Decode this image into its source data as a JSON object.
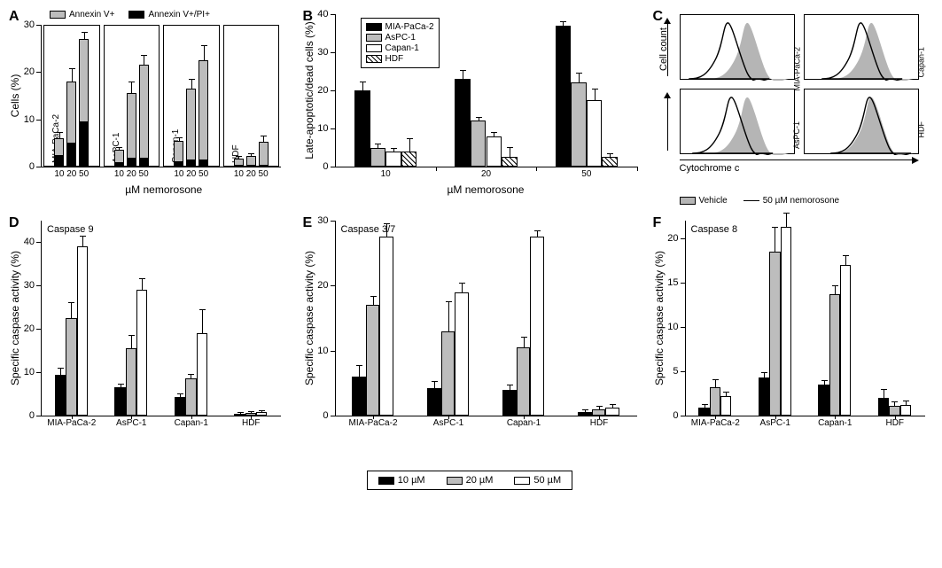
{
  "colors": {
    "black": "#000000",
    "gray": "#bdbdbd",
    "white": "#ffffff",
    "hist_fill": "#b5b5b5"
  },
  "panelA": {
    "label": "A",
    "y_label": "Cells (%)",
    "x_label": "µM nemorosone",
    "ymax": 30,
    "ytick": 10,
    "legend": [
      {
        "swatch": "#bdbdbd",
        "text": "Annexin V+"
      },
      {
        "swatch": "#000000",
        "text": "Annexin V+/PI+"
      }
    ],
    "groups": [
      {
        "name": "MIA-PaCa-2",
        "x": [
          "10",
          "20",
          "50"
        ],
        "gray": [
          6,
          18,
          27
        ],
        "gray_err": [
          1.2,
          2.6,
          1.3
        ],
        "black": [
          2.5,
          5,
          9.5
        ],
        "black_err": [
          0.4,
          0.6,
          0.6
        ]
      },
      {
        "name": "AsPC-1",
        "x": [
          "10",
          "20",
          "50"
        ],
        "gray": [
          3.5,
          15.5,
          21.5
        ],
        "gray_err": [
          0.5,
          2.3,
          2.0
        ],
        "black": [
          1.0,
          1.8,
          1.8
        ],
        "black_err": [
          0.3,
          0.4,
          0.4
        ]
      },
      {
        "name": "Capan-1",
        "x": [
          "10",
          "20",
          "50"
        ],
        "gray": [
          5.5,
          16.5,
          22.5
        ],
        "gray_err": [
          0.5,
          1.8,
          3.0
        ],
        "black": [
          1.2,
          1.5,
          1.5
        ],
        "black_err": [
          0.3,
          0.4,
          0.4
        ]
      },
      {
        "name": "HDF",
        "x": [
          "10",
          "20",
          "50"
        ],
        "gray": [
          1.6,
          2.2,
          5.2
        ],
        "gray_err": [
          0.4,
          0.5,
          1.1
        ],
        "black": [
          0.2,
          0.3,
          0.4
        ],
        "black_err": [
          0.2,
          0.2,
          0.3
        ]
      }
    ]
  },
  "panelB": {
    "label": "B",
    "y_label": "Late-apoptotic/dead cells (%)",
    "x_label": "µM nemorosone",
    "ymax": 40,
    "ytick": 10,
    "legend": [
      {
        "style": "fill",
        "color": "#000000",
        "text": "MIA-PaCa-2"
      },
      {
        "style": "fill",
        "color": "#bdbdbd",
        "text": "AsPC-1"
      },
      {
        "style": "fill",
        "color": "#ffffff",
        "text": "Capan-1"
      },
      {
        "style": "hatch",
        "color": "#ffffff",
        "text": "HDF"
      }
    ],
    "x": [
      "10",
      "20",
      "50"
    ],
    "series": [
      {
        "name": "MIA-PaCa-2",
        "color": "#000000",
        "style": "fill",
        "vals": [
          20,
          23,
          37
        ],
        "err": [
          2.0,
          2.2,
          0.8
        ]
      },
      {
        "name": "AsPC-1",
        "color": "#bdbdbd",
        "style": "fill",
        "vals": [
          5,
          12,
          22
        ],
        "err": [
          0.8,
          0.8,
          2.5
        ]
      },
      {
        "name": "Capan-1",
        "color": "#ffffff",
        "style": "fill",
        "vals": [
          4,
          8,
          17.5
        ],
        "err": [
          0.7,
          0.9,
          2.8
        ]
      },
      {
        "name": "HDF",
        "color": "#ffffff",
        "style": "hatch",
        "vals": [
          4,
          2.5,
          2.5
        ],
        "err": [
          3.3,
          2.3,
          0.7
        ]
      }
    ]
  },
  "panelC": {
    "label": "C",
    "y_side_label": "Cell count",
    "x_bottom_label": "Cytochrome c",
    "legend": [
      {
        "type": "fill",
        "color": "#b5b5b5",
        "text": "Vehicle"
      },
      {
        "type": "line",
        "text": "50 µM nemorosone"
      }
    ],
    "plots": [
      {
        "name": "MIA-PaCa-2",
        "shift": -22
      },
      {
        "name": "Capan-1",
        "shift": -12
      },
      {
        "name": "AsPC-1",
        "shift": -18
      },
      {
        "name": "HDF",
        "shift": -2
      }
    ]
  },
  "panelsDEF": [
    {
      "label": "D",
      "title": "Caspase 9",
      "ymax": 45,
      "ytick": 10,
      "series": [
        {
          "name": "MIA-PaCa-2",
          "vals": [
            9.5,
            22.5,
            39
          ],
          "err": [
            1.3,
            3.5,
            2.3
          ]
        },
        {
          "name": "AsPC-1",
          "vals": [
            6.5,
            15.5,
            29
          ],
          "err": [
            0.6,
            3.0,
            2.5
          ]
        },
        {
          "name": "Capan-1",
          "vals": [
            4.2,
            8.5,
            19
          ],
          "err": [
            0.7,
            1.0,
            5.3
          ]
        },
        {
          "name": "HDF",
          "vals": [
            0.4,
            0.6,
            0.8
          ],
          "err": [
            0.2,
            0.3,
            0.3
          ]
        }
      ]
    },
    {
      "label": "E",
      "title": "Caspase 3/7",
      "ymax": 30,
      "ytick": 10,
      "series": [
        {
          "name": "MIA-PaCa-2",
          "vals": [
            6,
            17,
            27.5
          ],
          "err": [
            1.6,
            1.3,
            2.0
          ]
        },
        {
          "name": "AsPC-1",
          "vals": [
            4.2,
            13,
            19
          ],
          "err": [
            1.0,
            4.5,
            1.3
          ]
        },
        {
          "name": "Capan-1",
          "vals": [
            4,
            10.5,
            27.5
          ],
          "err": [
            0.7,
            1.5,
            0.8
          ]
        },
        {
          "name": "HDF",
          "vals": [
            0.5,
            1.0,
            1.2
          ],
          "err": [
            0.3,
            0.4,
            0.4
          ]
        }
      ]
    },
    {
      "label": "F",
      "title": "Caspase 8",
      "ymax": 22,
      "ytick": 5,
      "series": [
        {
          "name": "MIA-PaCa-2",
          "vals": [
            0.9,
            3.2,
            2.2
          ],
          "err": [
            0.3,
            0.8,
            0.4
          ]
        },
        {
          "name": "AsPC-1",
          "vals": [
            4.3,
            18.5,
            21.3
          ],
          "err": [
            0.5,
            2.7,
            1.5
          ]
        },
        {
          "name": "Capan-1",
          "vals": [
            3.5,
            13.7,
            17
          ],
          "err": [
            0.4,
            0.9,
            1.0
          ]
        },
        {
          "name": "HDF",
          "vals": [
            2.0,
            1.1,
            1.2
          ],
          "err": [
            0.9,
            0.4,
            0.4
          ]
        }
      ]
    }
  ],
  "def_colors": [
    "#000000",
    "#bdbdbd",
    "#ffffff"
  ],
  "def_legend": [
    {
      "color": "#000000",
      "text": "10 µM"
    },
    {
      "color": "#bdbdbd",
      "text": "20 µM"
    },
    {
      "color": "#ffffff",
      "text": "50 µM"
    }
  ],
  "def_ylabel": "Specific caspase activity (%)"
}
